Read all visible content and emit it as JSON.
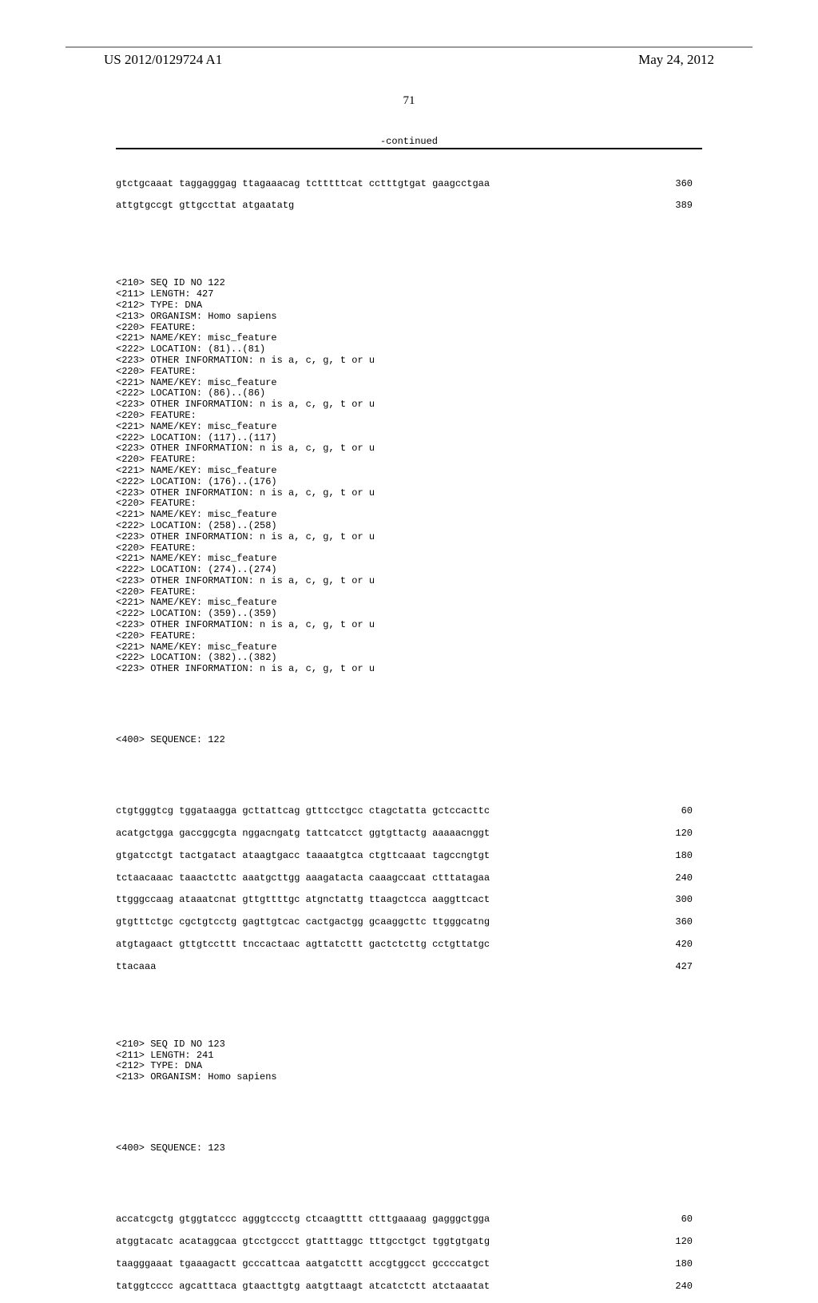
{
  "header": {
    "left": "US 2012/0129724 A1",
    "right": "May 24, 2012",
    "page_number": "71",
    "continued_label": "-continued"
  },
  "seq121_tail": {
    "rows": [
      {
        "text": "gtctgcaaat taggagggag ttagaaacag tctttttcat cctttgtgat gaagcctgaa",
        "num": "360"
      },
      {
        "text": "attgtgccgt gttgccttat atgaatatg",
        "num": "389"
      }
    ]
  },
  "seq122_meta": [
    "<210> SEQ ID NO 122",
    "<211> LENGTH: 427",
    "<212> TYPE: DNA",
    "<213> ORGANISM: Homo sapiens",
    "<220> FEATURE:",
    "<221> NAME/KEY: misc_feature",
    "<222> LOCATION: (81)..(81)",
    "<223> OTHER INFORMATION: n is a, c, g, t or u",
    "<220> FEATURE:",
    "<221> NAME/KEY: misc_feature",
    "<222> LOCATION: (86)..(86)",
    "<223> OTHER INFORMATION: n is a, c, g, t or u",
    "<220> FEATURE:",
    "<221> NAME/KEY: misc_feature",
    "<222> LOCATION: (117)..(117)",
    "<223> OTHER INFORMATION: n is a, c, g, t or u",
    "<220> FEATURE:",
    "<221> NAME/KEY: misc_feature",
    "<222> LOCATION: (176)..(176)",
    "<223> OTHER INFORMATION: n is a, c, g, t or u",
    "<220> FEATURE:",
    "<221> NAME/KEY: misc_feature",
    "<222> LOCATION: (258)..(258)",
    "<223> OTHER INFORMATION: n is a, c, g, t or u",
    "<220> FEATURE:",
    "<221> NAME/KEY: misc_feature",
    "<222> LOCATION: (274)..(274)",
    "<223> OTHER INFORMATION: n is a, c, g, t or u",
    "<220> FEATURE:",
    "<221> NAME/KEY: misc_feature",
    "<222> LOCATION: (359)..(359)",
    "<223> OTHER INFORMATION: n is a, c, g, t or u",
    "<220> FEATURE:",
    "<221> NAME/KEY: misc_feature",
    "<222> LOCATION: (382)..(382)",
    "<223> OTHER INFORMATION: n is a, c, g, t or u"
  ],
  "seq122_label": "<400> SEQUENCE: 122",
  "seq122_rows": [
    {
      "text": "ctgtgggtcg tggataagga gcttattcag gtttcctgcc ctagctatta gctccacttc",
      "num": "60"
    },
    {
      "text": "acatgctgga gaccggcgta nggacngatg tattcatcct ggtgttactg aaaaacnggt",
      "num": "120"
    },
    {
      "text": "gtgatcctgt tactgatact ataagtgacc taaaatgtca ctgttcaaat tagccngtgt",
      "num": "180"
    },
    {
      "text": "tctaacaaac taaactcttc aaatgcttgg aaagatacta caaagccaat ctttatagaa",
      "num": "240"
    },
    {
      "text": "ttgggccaag ataaatcnat gttgttttgc atgnctattg ttaagctcca aaggttcact",
      "num": "300"
    },
    {
      "text": "gtgtttctgc cgctgtcctg gagttgtcac cactgactgg gcaaggcttc ttgggcatng",
      "num": "360"
    },
    {
      "text": "atgtagaact gttgtccttt tnccactaac agttatcttt gactctcttg cctgttatgc",
      "num": "420"
    },
    {
      "text": "ttacaaa",
      "num": "427"
    }
  ],
  "seq123_meta": [
    "<210> SEQ ID NO 123",
    "<211> LENGTH: 241",
    "<212> TYPE: DNA",
    "<213> ORGANISM: Homo sapiens"
  ],
  "seq123_label": "<400> SEQUENCE: 123",
  "seq123_rows": [
    {
      "text": "accatcgctg gtggtatccc agggtccctg ctcaagtttt ctttgaaaag gagggctgga",
      "num": "60"
    },
    {
      "text": "atggtacatc acataggcaa gtcctgccct gtatttaggc tttgcctgct tggtgtgatg",
      "num": "120"
    },
    {
      "text": "taagggaaat tgaaagactt gcccattcaa aatgatcttt accgtggcct gccccatgct",
      "num": "180"
    },
    {
      "text": "tatggtcccc agcatttaca gtaacttgtg aatgttaagt atcatctctt atctaaatat",
      "num": "240"
    }
  ]
}
